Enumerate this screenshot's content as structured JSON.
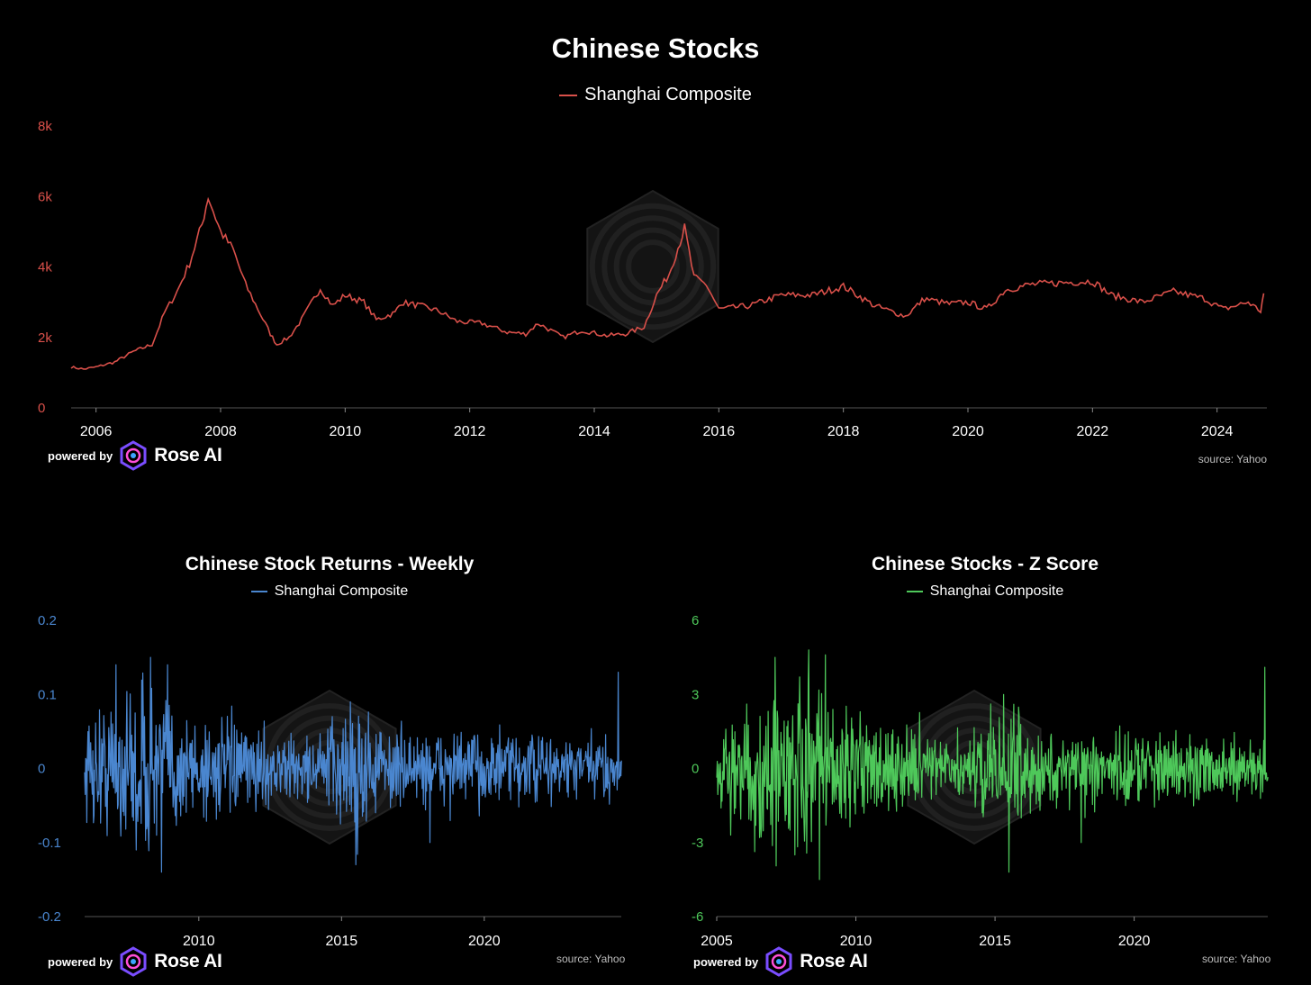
{
  "colors": {
    "background": "#000000",
    "red": "#d9504a",
    "blue": "#4a86cf",
    "green": "#4ec85a",
    "axis": "#555555",
    "text": "#ffffff",
    "watermark": "#1c1c1c"
  },
  "branding": {
    "powered_by": "powered by",
    "brand": "Rose AI",
    "logo_icon": "rose-ai-logo-icon"
  },
  "chart_data": [
    {
      "type": "line",
      "title": "Chinese Stocks",
      "series": [
        {
          "name": "Shanghai Composite",
          "color": "#d9504a",
          "points": [
            [
              2005.6,
              1160
            ],
            [
              2005.8,
              1100
            ],
            [
              2006.0,
              1160
            ],
            [
              2006.3,
              1300
            ],
            [
              2006.6,
              1600
            ],
            [
              2006.9,
              1800
            ],
            [
              2007.1,
              2700
            ],
            [
              2007.3,
              3300
            ],
            [
              2007.5,
              4100
            ],
            [
              2007.7,
              5200
            ],
            [
              2007.8,
              6000
            ],
            [
              2008.0,
              5000
            ],
            [
              2008.2,
              4500
            ],
            [
              2008.4,
              3500
            ],
            [
              2008.6,
              2800
            ],
            [
              2008.8,
              2100
            ],
            [
              2008.9,
              1800
            ],
            [
              2009.1,
              2000
            ],
            [
              2009.3,
              2500
            ],
            [
              2009.5,
              3100
            ],
            [
              2009.6,
              3400
            ],
            [
              2009.8,
              2900
            ],
            [
              2010.0,
              3200
            ],
            [
              2010.3,
              3000
            ],
            [
              2010.5,
              2500
            ],
            [
              2010.8,
              2700
            ],
            [
              2010.9,
              3000
            ],
            [
              2011.2,
              2900
            ],
            [
              2011.5,
              2750
            ],
            [
              2011.8,
              2450
            ],
            [
              2012.2,
              2400
            ],
            [
              2012.6,
              2150
            ],
            [
              2012.9,
              2100
            ],
            [
              2013.1,
              2400
            ],
            [
              2013.5,
              2000
            ],
            [
              2013.8,
              2200
            ],
            [
              2014.2,
              2050
            ],
            [
              2014.5,
              2100
            ],
            [
              2014.8,
              2300
            ],
            [
              2015.0,
              3200
            ],
            [
              2015.2,
              3800
            ],
            [
              2015.45,
              5100
            ],
            [
              2015.6,
              3700
            ],
            [
              2015.8,
              3500
            ],
            [
              2016.0,
              2800
            ],
            [
              2016.5,
              2900
            ],
            [
              2017.0,
              3200
            ],
            [
              2017.5,
              3200
            ],
            [
              2018.0,
              3450
            ],
            [
              2018.5,
              2900
            ],
            [
              2019.0,
              2600
            ],
            [
              2019.3,
              3100
            ],
            [
              2019.7,
              2950
            ],
            [
              2020.0,
              3000
            ],
            [
              2020.3,
              2800
            ],
            [
              2020.6,
              3350
            ],
            [
              2021.0,
              3500
            ],
            [
              2021.5,
              3550
            ],
            [
              2022.0,
              3600
            ],
            [
              2022.3,
              3200
            ],
            [
              2022.8,
              3000
            ],
            [
              2023.3,
              3300
            ],
            [
              2023.8,
              3100
            ],
            [
              2024.1,
              2800
            ],
            [
              2024.5,
              3000
            ],
            [
              2024.7,
              2750
            ],
            [
              2024.75,
              3250
            ]
          ]
        }
      ],
      "x_ticks": [
        2006,
        2008,
        2010,
        2012,
        2014,
        2016,
        2018,
        2020,
        2022,
        2024
      ],
      "y_ticks": [
        {
          "v": 0,
          "label": "0"
        },
        {
          "v": 2000,
          "label": "2k"
        },
        {
          "v": 4000,
          "label": "4k"
        },
        {
          "v": 6000,
          "label": "6k"
        },
        {
          "v": 8000,
          "label": "8k"
        }
      ],
      "xlim": [
        2005.6,
        2024.8
      ],
      "ylim": [
        0,
        8000
      ],
      "source": "source: Yahoo"
    },
    {
      "type": "line",
      "title": "Chinese Stock Returns - Weekly",
      "series": [
        {
          "name": "Shanghai Composite",
          "color": "#4a86cf"
        }
      ],
      "x_ticks": [
        2010,
        2015,
        2020
      ],
      "y_ticks": [
        {
          "v": -0.2,
          "label": "-0.2"
        },
        {
          "v": -0.1,
          "label": "-0.1"
        },
        {
          "v": 0,
          "label": "0"
        },
        {
          "v": 0.1,
          "label": "0.1"
        },
        {
          "v": 0.2,
          "label": "0.2"
        }
      ],
      "xlim": [
        2006,
        2024.8
      ],
      "ylim": [
        -0.2,
        0.2
      ],
      "volatility_profile": [
        [
          2006,
          0.035
        ],
        [
          2008,
          0.06
        ],
        [
          2009.5,
          0.04
        ],
        [
          2012,
          0.025
        ],
        [
          2014,
          0.02
        ],
        [
          2015.5,
          0.05
        ],
        [
          2016.5,
          0.025
        ],
        [
          2020,
          0.025
        ],
        [
          2024.6,
          0.02
        ]
      ],
      "spikes": [
        [
          2007.1,
          0.14
        ],
        [
          2007.8,
          -0.11
        ],
        [
          2008.3,
          0.15
        ],
        [
          2008.7,
          -0.14
        ],
        [
          2008.9,
          0.14
        ],
        [
          2015.5,
          -0.13
        ],
        [
          2015.3,
          0.09
        ],
        [
          2018.1,
          -0.1
        ],
        [
          2024.7,
          0.13
        ]
      ],
      "source": "source: Yahoo"
    },
    {
      "type": "line",
      "title": "Chinese Stocks - Z Score",
      "series": [
        {
          "name": "Shanghai Composite",
          "color": "#4ec85a"
        }
      ],
      "x_ticks": [
        2005,
        2010,
        2015,
        2020
      ],
      "y_ticks": [
        {
          "v": -6,
          "label": "-6"
        },
        {
          "v": -3,
          "label": "-3"
        },
        {
          "v": 0,
          "label": "0"
        },
        {
          "v": 3,
          "label": "3"
        },
        {
          "v": 6,
          "label": "6"
        }
      ],
      "xlim": [
        2005,
        2024.8
      ],
      "ylim": [
        -6,
        6
      ],
      "volatility_profile": [
        [
          2005,
          1.0
        ],
        [
          2008,
          1.8
        ],
        [
          2009.5,
          1.2
        ],
        [
          2012,
          0.8
        ],
        [
          2014,
          0.6
        ],
        [
          2015.5,
          1.5
        ],
        [
          2016.5,
          0.7
        ],
        [
          2020,
          0.75
        ],
        [
          2024.6,
          0.6
        ]
      ],
      "spikes": [
        [
          2007.1,
          4.5
        ],
        [
          2007.8,
          -3.5
        ],
        [
          2008.3,
          4.8
        ],
        [
          2008.7,
          -4.5
        ],
        [
          2008.9,
          4.6
        ],
        [
          2015.5,
          -4.2
        ],
        [
          2015.3,
          3.0
        ],
        [
          2018.1,
          -3.0
        ],
        [
          2024.7,
          4.1
        ]
      ],
      "source": "source: Yahoo"
    }
  ]
}
